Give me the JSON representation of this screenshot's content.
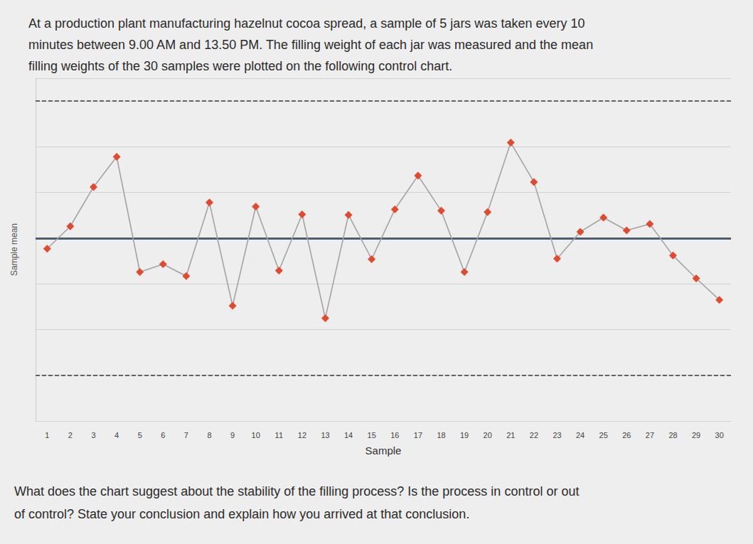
{
  "intro": [
    "At a production plant manufacturing hazelnut cocoa spread, a sample of 5 jars was taken every 10",
    "minutes between 9.00 AM and 13.50 PM. The filling weight of each jar was measured and the mean",
    "filling weights of the 30 samples were plotted on the following control chart."
  ],
  "chart_data": {
    "type": "line",
    "x_label": "Sample",
    "y_label": "Sample mean",
    "categories": [
      "1",
      "2",
      "3",
      "4",
      "5",
      "6",
      "7",
      "8",
      "9",
      "10",
      "11",
      "12",
      "13",
      "14",
      "15",
      "16",
      "17",
      "18",
      "19",
      "20",
      "21",
      "22",
      "23",
      "24",
      "25",
      "26",
      "27",
      "28",
      "29",
      "30"
    ],
    "values": [
      -0.23,
      0.26,
      1.12,
      1.78,
      -0.74,
      -0.57,
      -0.83,
      0.78,
      -1.48,
      0.69,
      -0.71,
      0.52,
      -1.75,
      0.51,
      -0.46,
      0.63,
      1.37,
      0.6,
      -0.74,
      0.57,
      2.09,
      1.23,
      -0.45,
      0.14,
      0.45,
      0.17,
      0.31,
      -0.38,
      -0.88,
      -1.35
    ],
    "color": "#e2492d",
    "marker": "diamond",
    "line_style": "solid",
    "control_limits": {
      "center": 0,
      "upper": 3,
      "lower": -3
    },
    "ylim": [
      -4,
      3.5
    ],
    "yticks": [
      -4,
      -3,
      -2,
      -1,
      0,
      1,
      2,
      3
    ],
    "grid": true,
    "tick_labels": "x"
  },
  "question": [
    "What does the chart suggest about the stability of the filling process? Is the process in control or out",
    "of control? State your conclusion and explain how you arrived at that conclusion."
  ]
}
